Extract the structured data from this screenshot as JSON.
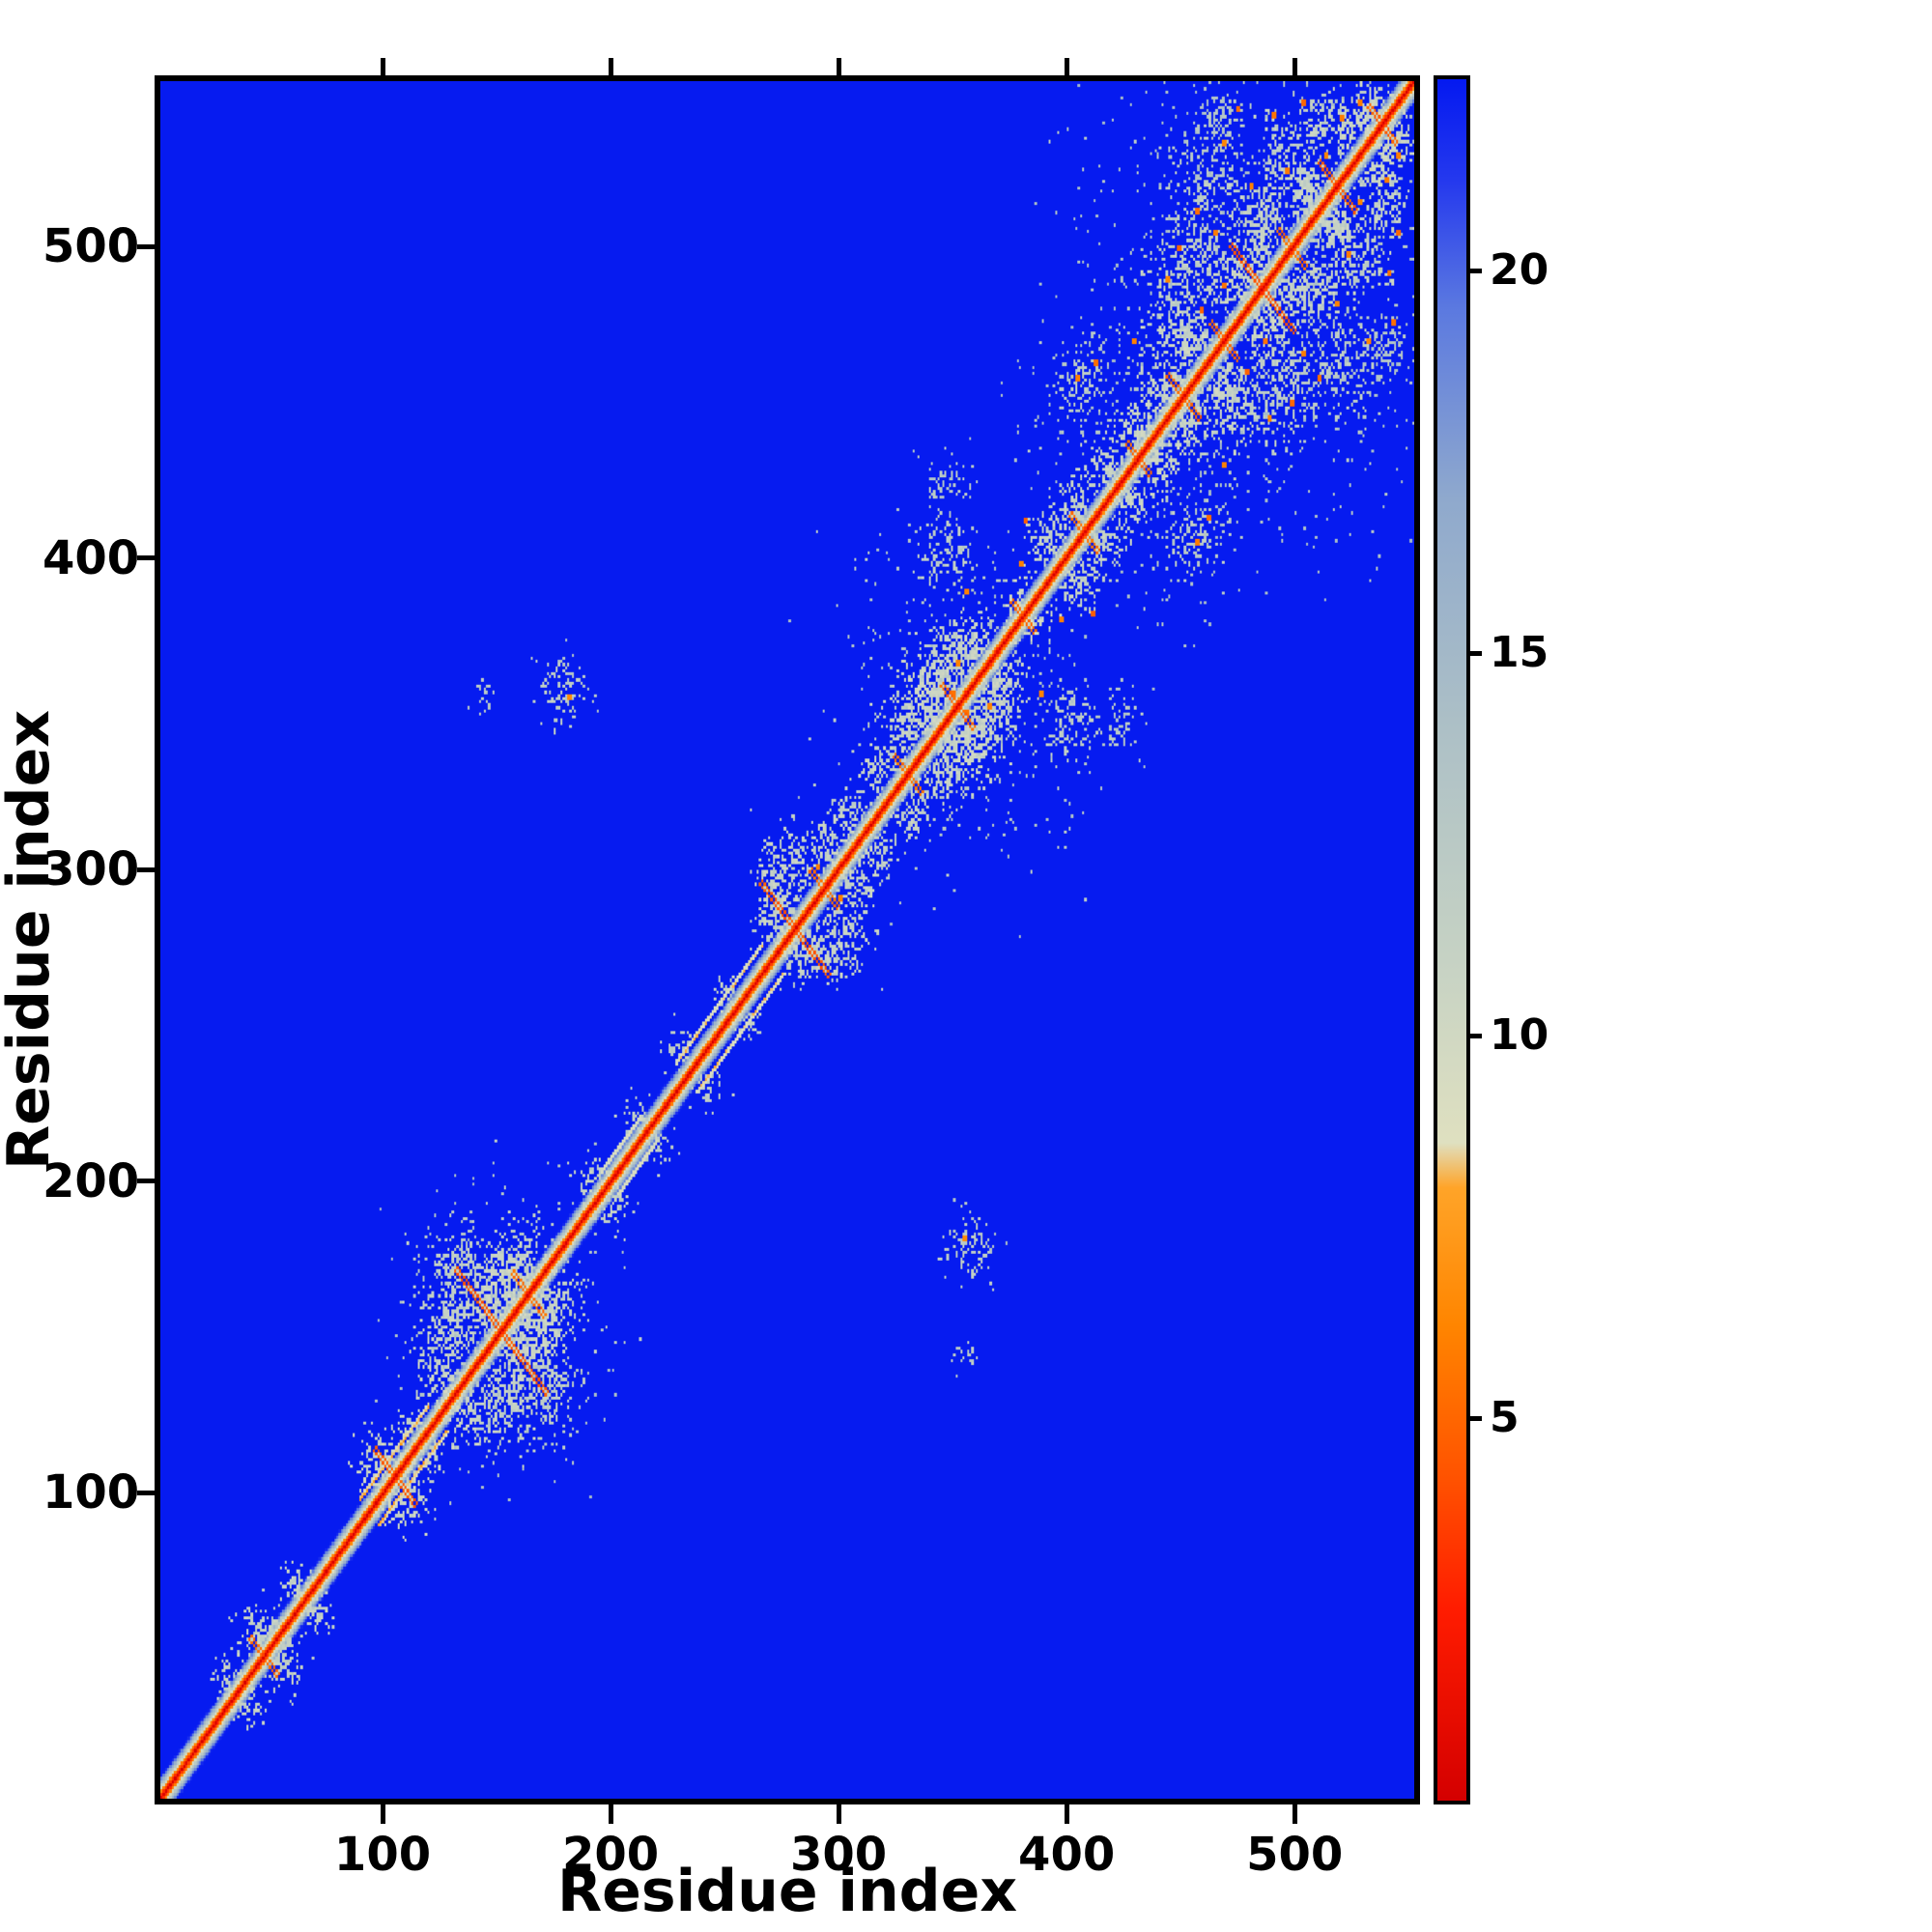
{
  "chart_data": {
    "type": "heatmap",
    "title": "",
    "xlabel": "Residue index",
    "ylabel": "Residue index",
    "x_ticks": [
      100,
      200,
      300,
      400,
      500
    ],
    "y_ticks": [
      100,
      200,
      300,
      400,
      500
    ],
    "x_range": [
      0,
      555
    ],
    "y_range": [
      0,
      555
    ],
    "n_residues": 555,
    "grid": false,
    "legend": null,
    "colorbar": {
      "ticks": [
        5,
        10,
        15,
        20
      ],
      "vmin": 0,
      "vmax": 22.5
    },
    "colormap_stops": [
      {
        "v": 0.0,
        "c": "#d40000"
      },
      {
        "v": 2.5,
        "c": "#ff1c00"
      },
      {
        "v": 4.2,
        "c": "#ff5200"
      },
      {
        "v": 6.2,
        "c": "#ff8500"
      },
      {
        "v": 8.0,
        "c": "#ffa428"
      },
      {
        "v": 8.6,
        "c": "#dfe0c0"
      },
      {
        "v": 11.0,
        "c": "#c6d2c4"
      },
      {
        "v": 14.0,
        "c": "#adc0c6"
      },
      {
        "v": 17.0,
        "c": "#8fa9cd"
      },
      {
        "v": 19.5,
        "c": "#5b79e0"
      },
      {
        "v": 21.2,
        "c": "#2438ee"
      },
      {
        "v": 22.5,
        "c": "#0419f0"
      }
    ],
    "matrix_model": {
      "description": "Symmetric residue-residue distance map. Red main diagonal (self/sequential contacts), orange anti-diagonal hairpin crosses, pale teal speckled tertiary-contact clusters on a blue (far) background.",
      "seed": 42,
      "base_value": 22.4,
      "diagonal": {
        "half_width": 7,
        "gradient_per_offset": 3.15
      },
      "hairpin_format": "center,half_length,value",
      "hairpins": [
        [
          45,
          6,
          5.5
        ],
        [
          103,
          9,
          4.8
        ],
        [
          150,
          20,
          4.5
        ],
        [
          162,
          7,
          5.5
        ],
        [
          280,
          15,
          4.6
        ],
        [
          293,
          6,
          5.5
        ],
        [
          330,
          6,
          5.5
        ],
        [
          352,
          7,
          5.2
        ],
        [
          381,
          5,
          5.5
        ],
        [
          408,
          6,
          5.5
        ],
        [
          432,
          5,
          5.5
        ],
        [
          452,
          7,
          5.2
        ],
        [
          470,
          6,
          5.4
        ],
        [
          487,
          14,
          4.6
        ],
        [
          500,
          6,
          5.4
        ],
        [
          520,
          8,
          5.0
        ],
        [
          540,
          6,
          5.0
        ]
      ],
      "cluster_format": "x,y,radius,value,density",
      "clusters": [
        [
          30,
          38,
          7,
          11,
          0.5
        ],
        [
          45,
          54,
          9,
          11,
          0.5
        ],
        [
          60,
          68,
          7,
          11,
          0.45
        ],
        [
          97,
          107,
          9,
          10.5,
          0.55
        ],
        [
          110,
          118,
          7,
          11,
          0.45
        ],
        [
          124,
          133,
          9,
          10.5,
          0.55
        ],
        [
          128,
          150,
          13,
          11,
          0.5
        ],
        [
          133,
          168,
          15,
          11.5,
          0.45
        ],
        [
          148,
          162,
          13,
          10.5,
          0.55
        ],
        [
          160,
          174,
          11,
          11,
          0.5
        ],
        [
          170,
          158,
          9,
          11,
          0.45
        ],
        [
          142,
          356,
          5,
          12.5,
          0.4
        ],
        [
          178,
          358,
          10,
          12,
          0.45
        ],
        [
          190,
          200,
          7,
          11,
          0.45
        ],
        [
          210,
          220,
          6,
          11.5,
          0.35
        ],
        [
          230,
          242,
          7,
          11.5,
          0.35
        ],
        [
          250,
          260,
          6,
          11.5,
          0.35
        ],
        [
          272,
          282,
          8,
          11,
          0.5
        ],
        [
          277,
          300,
          12,
          11,
          0.5
        ],
        [
          288,
          272,
          8,
          11,
          0.45
        ],
        [
          295,
          308,
          9,
          11,
          0.5
        ],
        [
          305,
          318,
          8,
          11,
          0.45
        ],
        [
          318,
          330,
          8,
          11,
          0.45
        ],
        [
          330,
          344,
          10,
          11,
          0.5
        ],
        [
          340,
          356,
          12,
          10.5,
          0.55
        ],
        [
          352,
          340,
          9,
          11,
          0.5
        ],
        [
          348,
          368,
          11,
          11,
          0.5
        ],
        [
          360,
          372,
          9,
          10.5,
          0.55
        ],
        [
          345,
          402,
          11,
          12,
          0.4
        ],
        [
          347,
          424,
          9,
          12.5,
          0.35
        ],
        [
          368,
          352,
          8,
          11,
          0.45
        ],
        [
          380,
          384,
          7,
          10,
          0.55
        ],
        [
          393,
          406,
          10,
          11,
          0.5
        ],
        [
          405,
          418,
          8,
          11,
          0.5
        ],
        [
          408,
          456,
          12,
          12,
          0.35
        ],
        [
          420,
          430,
          8,
          10.5,
          0.55
        ],
        [
          432,
          442,
          9,
          10.5,
          0.6
        ],
        [
          444,
          454,
          9,
          10.5,
          0.6
        ],
        [
          450,
          472,
          13,
          11,
          0.5
        ],
        [
          456,
          496,
          15,
          11.5,
          0.45
        ],
        [
          462,
          522,
          13,
          12,
          0.4
        ],
        [
          468,
          543,
          9,
          12.5,
          0.35
        ],
        [
          478,
          490,
          11,
          10.5,
          0.55
        ],
        [
          487,
          512,
          11,
          11,
          0.5
        ],
        [
          496,
          532,
          10,
          11.5,
          0.45
        ],
        [
          506,
          520,
          9,
          11,
          0.5
        ],
        [
          513,
          541,
          9,
          11,
          0.5
        ],
        [
          524,
          535,
          7,
          10.5,
          0.55
        ],
        [
          534,
          546,
          7,
          10.5,
          0.55
        ],
        [
          541,
          528,
          7,
          11,
          0.45
        ],
        [
          470,
          458,
          8,
          10.5,
          0.5
        ],
        [
          500,
          488,
          8,
          11,
          0.5
        ],
        [
          520,
          508,
          8,
          11,
          0.5
        ],
        [
          545,
          538,
          6,
          10.5,
          0.55
        ]
      ],
      "sparse_field_format": "x,y,radius,value,density",
      "sparse_fields": [
        [
          150,
          152,
          38,
          13,
          0.06
        ],
        [
          350,
          360,
          45,
          13,
          0.05
        ],
        [
          490,
          500,
          65,
          13.5,
          0.06
        ],
        [
          420,
          450,
          40,
          13.5,
          0.04
        ]
      ],
      "parallel_segment_format": "from,to,offset,value",
      "parallel_segments": [
        [
          228,
          266,
          9,
          8.5
        ],
        [
          88,
          118,
          8,
          8.0
        ],
        [
          195,
          212,
          7,
          9.0
        ]
      ],
      "orange_spot_format": "x,y",
      "orange_spots": [
        [
          180,
          355
        ],
        [
          356,
          389
        ],
        [
          382,
          412
        ],
        [
          352,
          366
        ],
        [
          300,
          290
        ],
        [
          405,
          458
        ],
        [
          413,
          463
        ],
        [
          450,
          500
        ],
        [
          458,
          512
        ],
        [
          470,
          534
        ],
        [
          482,
          520
        ],
        [
          492,
          543
        ],
        [
          505,
          547
        ],
        [
          515,
          530
        ],
        [
          460,
          480
        ],
        [
          488,
          470
        ],
        [
          530,
          547
        ],
        [
          350,
          356
        ],
        [
          398,
          380
        ],
        [
          430,
          470
        ],
        [
          445,
          490
        ],
        [
          466,
          505
        ],
        [
          476,
          545
        ],
        [
          498,
          525
        ],
        [
          522,
          542
        ]
      ]
    }
  }
}
